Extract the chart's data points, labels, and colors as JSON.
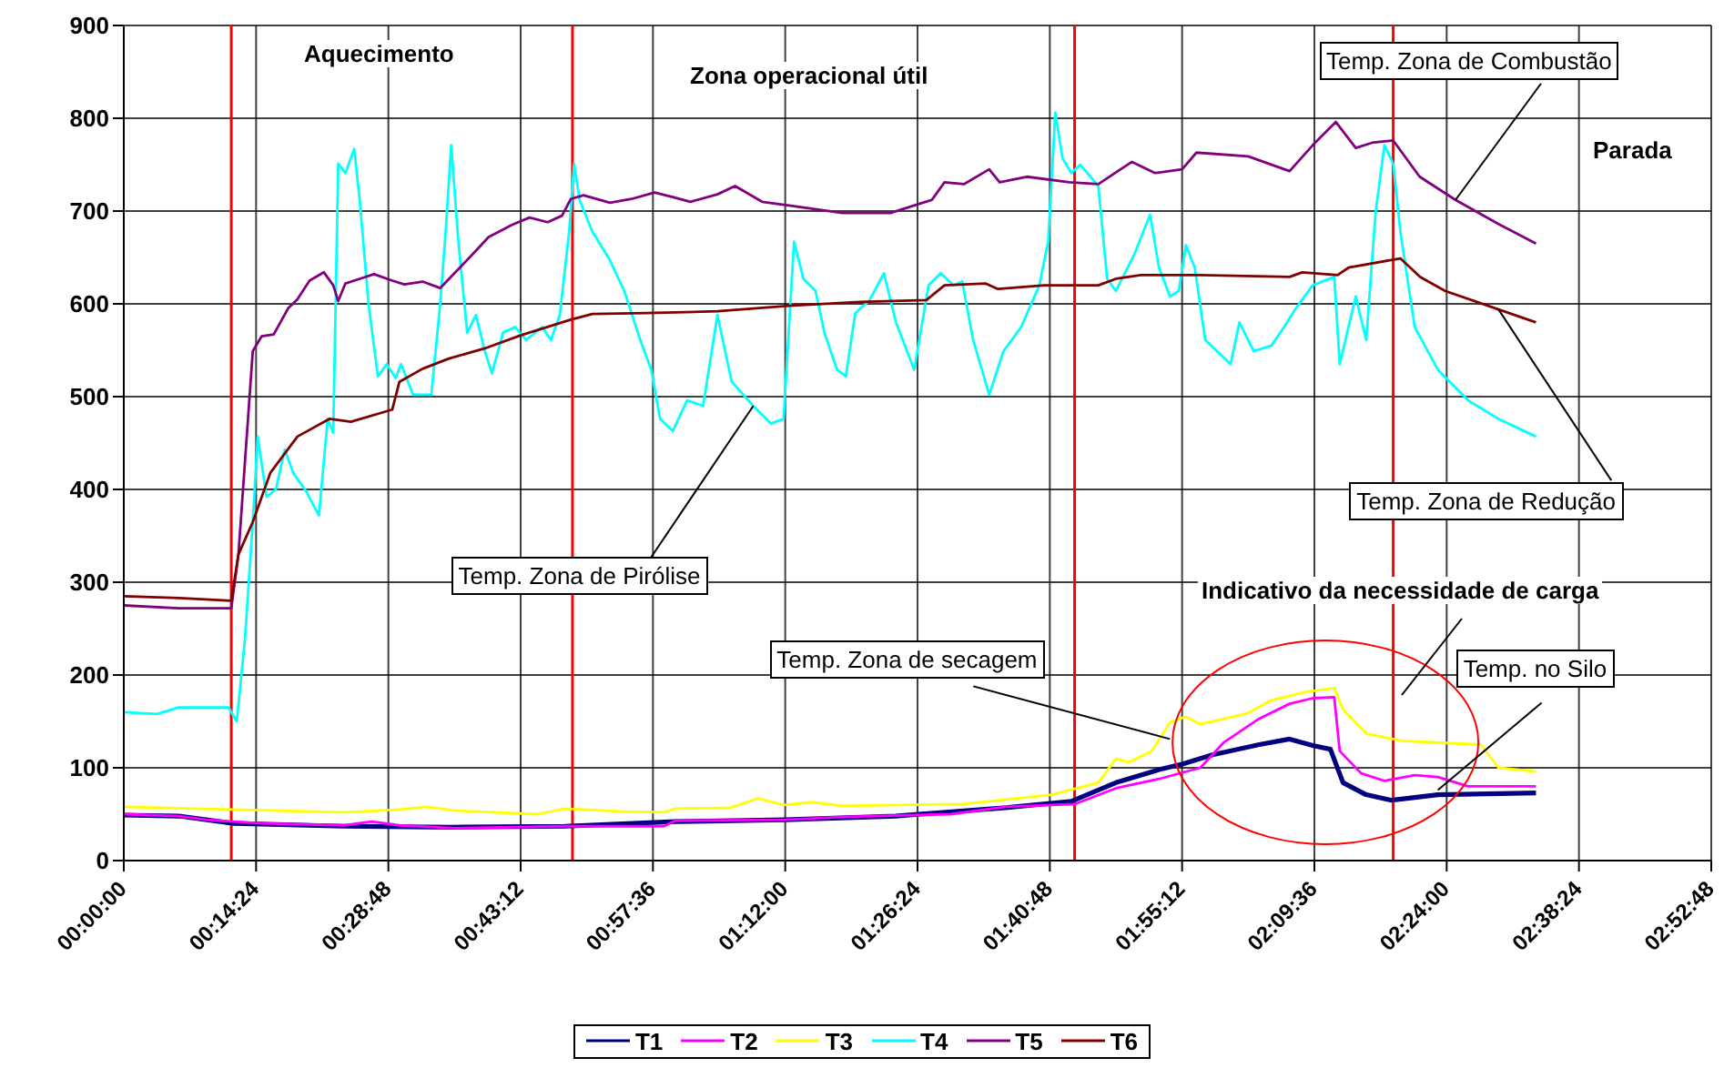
{
  "chart_data": {
    "type": "line",
    "xlim": [
      0,
      2.88
    ],
    "ylim": [
      0,
      900
    ],
    "xticks": [
      {
        "value": 0,
        "label": "00:00:00"
      },
      {
        "value": 0.24,
        "label": "00:14:24"
      },
      {
        "value": 0.48,
        "label": "00:28:48"
      },
      {
        "value": 0.72,
        "label": "00:43:12"
      },
      {
        "value": 0.96,
        "label": "00:57:36"
      },
      {
        "value": 1.2,
        "label": "01:12:00"
      },
      {
        "value": 1.44,
        "label": "01:26:24"
      },
      {
        "value": 1.68,
        "label": "01:40:48"
      },
      {
        "value": 1.92,
        "label": "01:55:12"
      },
      {
        "value": 2.16,
        "label": "02:09:36"
      },
      {
        "value": 2.4,
        "label": "02:24:00"
      },
      {
        "value": 2.64,
        "label": "02:38:24"
      },
      {
        "value": 2.88,
        "label": "02:52:48"
      }
    ],
    "yticks": [
      0,
      100,
      200,
      300,
      400,
      500,
      600,
      700,
      800,
      900
    ],
    "grid": true,
    "legend": "bottom",
    "marker": "none",
    "line_style": "solid",
    "ref_lines": [
      {
        "axis": "x",
        "value": 0.195,
        "color": "#ff0000"
      },
      {
        "axis": "x",
        "value": 0.814,
        "color": "#ff0000"
      },
      {
        "axis": "x",
        "value": 1.725,
        "color": "#ff0000"
      },
      {
        "axis": "x",
        "value": 2.303,
        "color": "#ff0000"
      }
    ],
    "annotations": [
      "Aquecimento",
      "Zona operacional útil",
      "Parada",
      "Indicativo da necessidade de carga",
      {
        "text": "Temp. Zona de Combustão",
        "x": 2.416,
        "y": 712
      },
      {
        "text": "Temp. Zona de Redução",
        "x": 2.494,
        "y": 594
      },
      {
        "text": "Temp. Zona de Pirólise",
        "x": 1.142,
        "y": 490
      },
      {
        "text": "Temp. Zona de secagem",
        "x": 1.898,
        "y": 131
      },
      {
        "text": "Temp. no Silo",
        "x": 2.384,
        "y": 76
      }
    ],
    "series": [
      {
        "name": "T1",
        "color": "#000080",
        "x": [
          0,
          0.1,
          0.2,
          0.4,
          0.6,
          0.8,
          1.0,
          1.2,
          1.4,
          1.6,
          1.72,
          1.8,
          1.878,
          1.92,
          1.975,
          2.06,
          2.115,
          2.157,
          2.189,
          2.212,
          2.254,
          2.3,
          2.384,
          2.562
        ],
        "values": [
          49,
          48,
          40,
          37,
          36,
          37,
          42,
          44,
          48,
          57,
          64,
          84,
          98,
          104,
          114,
          125,
          131,
          124,
          120,
          84,
          71,
          65,
          71,
          73
        ]
      },
      {
        "name": "T2",
        "color": "#ff00ff",
        "x": [
          0,
          0.1,
          0.15,
          0.25,
          0.4,
          0.45,
          0.5,
          0.6,
          0.8,
          0.98,
          1.0,
          1.2,
          1.3,
          1.5,
          1.6,
          1.726,
          1.8,
          1.878,
          1.953,
          1.995,
          2.06,
          2.115,
          2.157,
          2.196,
          2.206,
          2.245,
          2.287,
          2.342,
          2.384,
          2.439,
          2.562
        ],
        "values": [
          50,
          48,
          44,
          40,
          38,
          42,
          38,
          35,
          37,
          37,
          43,
          44,
          47,
          50,
          58,
          61,
          78,
          88,
          100,
          127,
          153,
          169,
          175,
          176,
          118,
          94,
          86,
          92,
          90,
          80,
          80
        ]
      },
      {
        "name": "T3",
        "color": "#ffff00",
        "x": [
          0,
          0.2,
          0.4,
          0.5,
          0.55,
          0.6,
          0.75,
          0.8,
          0.9,
          0.98,
          1.0,
          1.1,
          1.151,
          1.197,
          1.249,
          1.304,
          1.521,
          1.683,
          1.768,
          1.8,
          1.823,
          1.865,
          1.898,
          1.927,
          1.953,
          2.04,
          2.082,
          2.147,
          2.196,
          2.212,
          2.254,
          2.319,
          2.462,
          2.494,
          2.562
        ],
        "values": [
          58,
          55,
          52,
          55,
          58,
          54,
          50,
          56,
          53,
          52,
          56,
          57,
          67,
          60,
          63,
          59,
          61,
          71,
          84,
          110,
          106,
          118,
          149,
          155,
          147,
          159,
          173,
          182,
          186,
          163,
          137,
          129,
          125,
          100,
          96
        ]
      },
      {
        "name": "T4",
        "color": "#00ffff",
        "x": [
          0,
          0.06,
          0.1,
          0.19,
          0.205,
          0.22,
          0.234,
          0.243,
          0.259,
          0.276,
          0.292,
          0.308,
          0.331,
          0.354,
          0.37,
          0.38,
          0.389,
          0.402,
          0.418,
          0.428,
          0.444,
          0.461,
          0.477,
          0.493,
          0.503,
          0.525,
          0.558,
          0.574,
          0.584,
          0.594,
          0.607,
          0.623,
          0.639,
          0.655,
          0.668,
          0.688,
          0.71,
          0.73,
          0.759,
          0.775,
          0.791,
          0.808,
          0.817,
          0.827,
          0.85,
          0.882,
          0.908,
          0.937,
          0.957,
          0.973,
          0.996,
          1.022,
          1.051,
          1.077,
          1.103,
          1.142,
          1.174,
          1.197,
          1.216,
          1.233,
          1.255,
          1.271,
          1.294,
          1.31,
          1.327,
          1.353,
          1.379,
          1.401,
          1.434,
          1.46,
          1.482,
          1.505,
          1.521,
          1.541,
          1.57,
          1.596,
          1.628,
          1.661,
          1.677,
          1.69,
          1.703,
          1.719,
          1.735,
          1.768,
          1.784,
          1.8,
          1.833,
          1.862,
          1.878,
          1.898,
          1.914,
          1.927,
          1.943,
          1.962,
          2.008,
          2.024,
          2.05,
          2.082,
          2.105,
          2.125,
          2.157,
          2.196,
          2.206,
          2.235,
          2.254,
          2.271,
          2.287,
          2.303,
          2.316,
          2.342,
          2.384,
          2.439,
          2.494,
          2.562
        ],
        "values": [
          160,
          158,
          165,
          165,
          150,
          240,
          365,
          457,
          392,
          400,
          443,
          417,
          398,
          372,
          476,
          461,
          751,
          741,
          767,
          712,
          600,
          522,
          535,
          520,
          535,
          502,
          502,
          600,
          678,
          771,
          667,
          569,
          588,
          549,
          525,
          569,
          575,
          561,
          575,
          561,
          588,
          678,
          751,
          712,
          678,
          647,
          614,
          561,
          529,
          476,
          463,
          496,
          490,
          588,
          516,
          490,
          471,
          476,
          667,
          627,
          614,
          569,
          529,
          522,
          590,
          604,
          633,
          580,
          529,
          620,
          633,
          620,
          624,
          561,
          502,
          549,
          575,
          620,
          667,
          806,
          757,
          741,
          750,
          727,
          627,
          614,
          653,
          696,
          639,
          608,
          614,
          663,
          639,
          561,
          535,
          580,
          549,
          555,
          575,
          594,
          620,
          629,
          535,
          608,
          561,
          698,
          771,
          751,
          678,
          575,
          529,
          496,
          476,
          457
        ]
      },
      {
        "name": "T5",
        "color": "#800080",
        "x": [
          0,
          0.1,
          0.195,
          0.208,
          0.234,
          0.25,
          0.272,
          0.298,
          0.315,
          0.337,
          0.363,
          0.38,
          0.389,
          0.402,
          0.428,
          0.454,
          0.487,
          0.509,
          0.542,
          0.574,
          0.6,
          0.632,
          0.662,
          0.704,
          0.736,
          0.769,
          0.795,
          0.811,
          0.834,
          0.882,
          0.921,
          0.963,
          0.996,
          1.028,
          1.077,
          1.109,
          1.158,
          1.207,
          1.304,
          1.391,
          1.466,
          1.489,
          1.524,
          1.57,
          1.589,
          1.638,
          1.716,
          1.768,
          1.829,
          1.871,
          1.92,
          1.946,
          2.04,
          2.115,
          2.157,
          2.199,
          2.235,
          2.267,
          2.303,
          2.351,
          2.416,
          2.494,
          2.562
        ],
        "values": [
          275,
          272,
          272,
          330,
          549,
          565,
          567,
          595,
          605,
          625,
          634,
          620,
          603,
          622,
          627,
          632,
          625,
          621,
          624,
          617,
          633,
          653,
          672,
          685,
          693,
          688,
          695,
          713,
          717,
          709,
          713,
          720,
          715,
          710,
          718,
          727,
          710,
          706,
          698,
          698,
          712,
          731,
          729,
          745,
          731,
          737,
          731,
          729,
          753,
          741,
          745,
          763,
          759,
          743,
          771,
          796,
          768,
          774,
          776,
          737,
          712,
          686,
          665
        ]
      },
      {
        "name": "T6",
        "color": "#800000",
        "x": [
          0,
          0.1,
          0.195,
          0.208,
          0.234,
          0.266,
          0.315,
          0.373,
          0.412,
          0.487,
          0.5,
          0.542,
          0.59,
          0.655,
          0.72,
          0.811,
          0.85,
          0.947,
          1.077,
          1.207,
          1.336,
          1.456,
          1.489,
          1.563,
          1.586,
          1.67,
          1.768,
          1.8,
          1.845,
          1.953,
          2.115,
          2.138,
          2.202,
          2.222,
          2.316,
          2.352,
          2.397,
          2.494,
          2.562
        ],
        "values": [
          285,
          283,
          280,
          330,
          365,
          418,
          457,
          476,
          473,
          486,
          516,
          530,
          541,
          552,
          566,
          583,
          589,
          590,
          592,
          598,
          602,
          604,
          620,
          622,
          616,
          620,
          620,
          627,
          631,
          631,
          629,
          634,
          631,
          639,
          649,
          629,
          614,
          594,
          580
        ]
      }
    ]
  }
}
